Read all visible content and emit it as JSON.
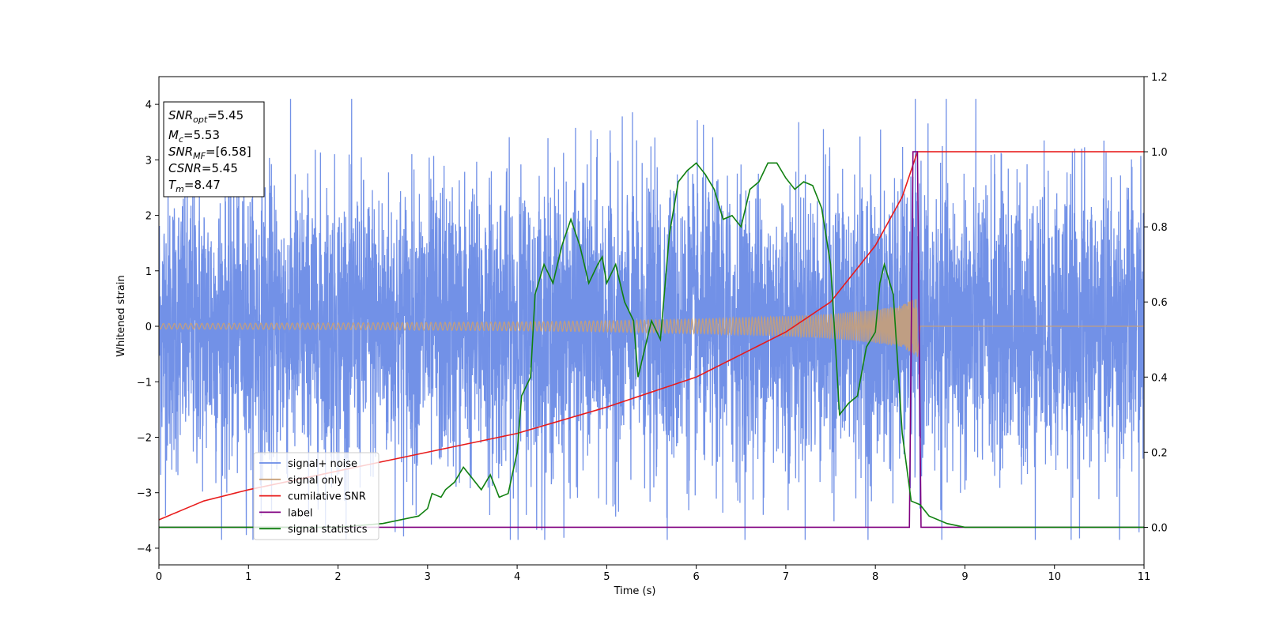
{
  "chart_data": {
    "type": "line",
    "xlabel": "Time (s)",
    "ylabel": "Whitened strain",
    "xlim": [
      0,
      11
    ],
    "ylim": [
      -4.3,
      4.5
    ],
    "y2lim": [
      -0.1,
      1.2
    ],
    "xticks": [
      "0",
      "1",
      "2",
      "3",
      "4",
      "5",
      "6",
      "7",
      "8",
      "9",
      "10",
      "11"
    ],
    "yticks": [
      "−4",
      "−3",
      "−2",
      "−1",
      "0",
      "1",
      "2",
      "3",
      "4"
    ],
    "y2ticks": [
      "0.0",
      "0.2",
      "0.4",
      "0.6",
      "0.8",
      "1.0",
      "1.2"
    ],
    "grid": false,
    "legend_position": "lower-left",
    "annotation": {
      "lines": [
        {
          "base": "SNR",
          "sub": "opt",
          "value": "=5.45"
        },
        {
          "base": "M",
          "sub": "c",
          "value": "=5.53"
        },
        {
          "base": "SNR",
          "sub": "MF",
          "value": "=[6.58]"
        },
        {
          "base": "CSNR",
          "sub": "",
          "value": "=5.45"
        },
        {
          "base": "T",
          "sub": "m",
          "value": "=8.47"
        }
      ]
    },
    "series": [
      {
        "name": "signal+ noise",
        "axis": "left",
        "color": "#6a8be6",
        "description_noise_amplitude": 1.3,
        "x_range": [
          0,
          11
        ]
      },
      {
        "name": "signal only",
        "axis": "left",
        "color": "#c8a078",
        "chirp_end": 8.47,
        "envelope": [
          [
            0,
            0.05
          ],
          [
            2,
            0.06
          ],
          [
            4,
            0.08
          ],
          [
            5,
            0.1
          ],
          [
            6,
            0.13
          ],
          [
            7,
            0.18
          ],
          [
            7.5,
            0.22
          ],
          [
            8,
            0.3
          ],
          [
            8.3,
            0.38
          ],
          [
            8.47,
            0.55
          ],
          [
            8.5,
            0.0
          ],
          [
            11,
            0.0
          ]
        ]
      },
      {
        "name": "cumilative SNR",
        "axis": "right",
        "color": "#e81b1b",
        "points": [
          [
            0,
            0.02
          ],
          [
            0.5,
            0.07
          ],
          [
            1,
            0.1
          ],
          [
            2,
            0.15
          ],
          [
            3,
            0.2
          ],
          [
            4,
            0.25
          ],
          [
            5,
            0.32
          ],
          [
            6,
            0.4
          ],
          [
            7,
            0.52
          ],
          [
            7.5,
            0.6
          ],
          [
            8,
            0.75
          ],
          [
            8.3,
            0.88
          ],
          [
            8.47,
            1.0
          ],
          [
            11,
            1.0
          ]
        ]
      },
      {
        "name": "label",
        "axis": "right",
        "color": "#800080",
        "points": [
          [
            0,
            0.0
          ],
          [
            8.38,
            0.0
          ],
          [
            8.42,
            1.0
          ],
          [
            8.47,
            1.0
          ],
          [
            8.51,
            0.0
          ],
          [
            11,
            0.0
          ]
        ]
      },
      {
        "name": "signal statistics",
        "axis": "right",
        "color": "#108010",
        "points": [
          [
            0,
            0.0
          ],
          [
            0.5,
            0.0
          ],
          [
            1,
            0.0
          ],
          [
            1.5,
            0.0
          ],
          [
            2,
            0.0
          ],
          [
            2.5,
            0.01
          ],
          [
            2.7,
            0.02
          ],
          [
            2.9,
            0.03
          ],
          [
            3.0,
            0.05
          ],
          [
            3.05,
            0.09
          ],
          [
            3.15,
            0.08
          ],
          [
            3.2,
            0.1
          ],
          [
            3.3,
            0.12
          ],
          [
            3.4,
            0.16
          ],
          [
            3.5,
            0.13
          ],
          [
            3.6,
            0.1
          ],
          [
            3.7,
            0.14
          ],
          [
            3.8,
            0.08
          ],
          [
            3.9,
            0.09
          ],
          [
            4.0,
            0.2
          ],
          [
            4.05,
            0.35
          ],
          [
            4.15,
            0.4
          ],
          [
            4.2,
            0.62
          ],
          [
            4.3,
            0.7
          ],
          [
            4.4,
            0.65
          ],
          [
            4.5,
            0.75
          ],
          [
            4.6,
            0.82
          ],
          [
            4.7,
            0.75
          ],
          [
            4.8,
            0.65
          ],
          [
            4.9,
            0.7
          ],
          [
            4.95,
            0.72
          ],
          [
            5.0,
            0.65
          ],
          [
            5.1,
            0.7
          ],
          [
            5.2,
            0.6
          ],
          [
            5.3,
            0.55
          ],
          [
            5.35,
            0.4
          ],
          [
            5.4,
            0.45
          ],
          [
            5.5,
            0.55
          ],
          [
            5.6,
            0.5
          ],
          [
            5.7,
            0.78
          ],
          [
            5.8,
            0.92
          ],
          [
            5.9,
            0.95
          ],
          [
            6.0,
            0.97
          ],
          [
            6.1,
            0.94
          ],
          [
            6.2,
            0.9
          ],
          [
            6.3,
            0.82
          ],
          [
            6.4,
            0.83
          ],
          [
            6.5,
            0.8
          ],
          [
            6.6,
            0.9
          ],
          [
            6.7,
            0.92
          ],
          [
            6.8,
            0.97
          ],
          [
            6.9,
            0.97
          ],
          [
            7.0,
            0.93
          ],
          [
            7.1,
            0.9
          ],
          [
            7.2,
            0.92
          ],
          [
            7.3,
            0.91
          ],
          [
            7.4,
            0.85
          ],
          [
            7.5,
            0.7
          ],
          [
            7.6,
            0.3
          ],
          [
            7.7,
            0.33
          ],
          [
            7.8,
            0.35
          ],
          [
            7.9,
            0.48
          ],
          [
            8.0,
            0.52
          ],
          [
            8.05,
            0.65
          ],
          [
            8.1,
            0.7
          ],
          [
            8.2,
            0.62
          ],
          [
            8.3,
            0.25
          ],
          [
            8.4,
            0.07
          ],
          [
            8.5,
            0.06
          ],
          [
            8.6,
            0.03
          ],
          [
            8.8,
            0.01
          ],
          [
            9.0,
            0.0
          ],
          [
            10,
            0.0
          ],
          [
            11,
            0.0
          ]
        ]
      }
    ]
  }
}
